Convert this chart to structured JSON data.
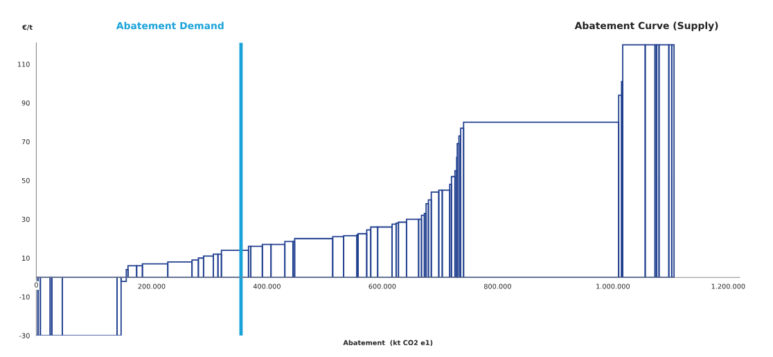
{
  "chart_data": {
    "type": "histogram",
    "ylabel": "€/t",
    "xlabel": "Abatement  (kt CO2 e1)",
    "annotations": [
      "Abatement Curve (Supply)"
    ],
    "color": "#203f8f",
    "bins": [
      0,
      3000,
      7000,
      24000,
      27000,
      45000,
      140000,
      147000,
      156000,
      159000,
      174000,
      184000,
      228000,
      270000,
      281000,
      290000,
      307000,
      315000,
      321000,
      368000,
      372000,
      392000,
      407000,
      431000,
      445000,
      448000,
      514000,
      533000,
      556000,
      558000,
      573000,
      580000,
      592000,
      617000,
      624000,
      628000,
      642000,
      663000,
      668000,
      673000,
      676000,
      680000,
      685000,
      698000,
      704000,
      717000,
      720000,
      726000,
      729000,
      730000,
      733000,
      736000,
      741000,
      1010000,
      1015000,
      1017000,
      1056000,
      1073000,
      1076000,
      1080000,
      1097000,
      1102000,
      1106000
    ],
    "values": [
      -30,
      -30,
      -30,
      -30,
      -30,
      -30,
      -30,
      -2,
      4,
      6,
      6,
      7,
      8,
      9,
      10,
      11,
      12,
      12,
      14,
      16,
      16,
      17,
      17,
      18.5,
      18.5,
      20,
      21,
      21.5,
      22,
      22.5,
      24.5,
      26,
      26,
      27.5,
      28,
      28.5,
      30,
      30,
      32,
      33,
      38,
      40,
      44,
      45,
      45,
      48,
      52,
      55,
      62,
      69,
      73,
      77,
      80,
      94,
      101,
      120,
      120,
      120,
      120,
      120,
      120,
      120
    ],
    "xlim": [
      0,
      1220000
    ],
    "ylim": [
      -30,
      121
    ],
    "xticks": [
      0,
      {
        "value": 200000,
        "label": "200.000"
      },
      {
        "value": 400000,
        "label": "400.000"
      },
      {
        "value": 600000,
        "label": "600.000"
      },
      {
        "value": 800000,
        "label": "800.000"
      },
      {
        "value": 1000000,
        "label": "1.000.000"
      },
      {
        "value": 1200000,
        "label": "1.200.000"
      }
    ],
    "yticks": [
      -30,
      -10,
      10,
      30,
      50,
      70,
      90,
      110
    ],
    "ref_lines": [
      {
        "axis": "x",
        "value": 355000,
        "label": "Abatement Demand",
        "color": "#1aa3d9"
      }
    ],
    "grid": false
  }
}
